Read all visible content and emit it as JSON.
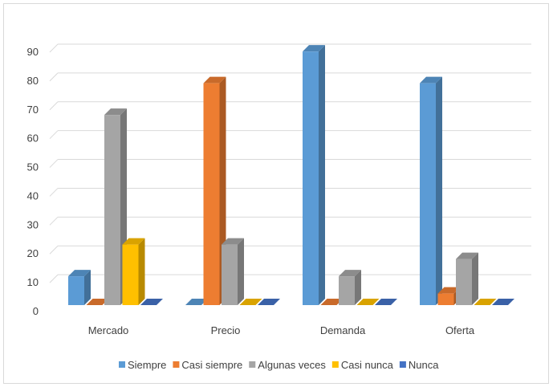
{
  "chart_data": {
    "type": "bar",
    "style": "3d-clustered-column",
    "title": "",
    "xlabel": "",
    "ylabel": "",
    "ylim": [
      0,
      90
    ],
    "yticks": [
      0,
      10,
      20,
      30,
      40,
      50,
      60,
      70,
      80,
      90
    ],
    "grid": true,
    "legend_position": "bottom",
    "categories": [
      "Mercado",
      "Precio",
      "Demanda",
      "Oferta"
    ],
    "series": [
      {
        "name": "Siempre",
        "color": "#5B9BD5",
        "values": [
          10,
          0,
          88,
          77
        ]
      },
      {
        "name": "Casi siempre",
        "color": "#ED7D31",
        "values": [
          0,
          77,
          0,
          4
        ]
      },
      {
        "name": "Algunas veces",
        "color": "#A5A5A5",
        "values": [
          66,
          21,
          10,
          16
        ]
      },
      {
        "name": "Casi nunca",
        "color": "#FFC000",
        "values": [
          21,
          0,
          0,
          0
        ]
      },
      {
        "name": "Nunca",
        "color": "#4472C4",
        "values": [
          0,
          0,
          0,
          0
        ]
      }
    ]
  }
}
